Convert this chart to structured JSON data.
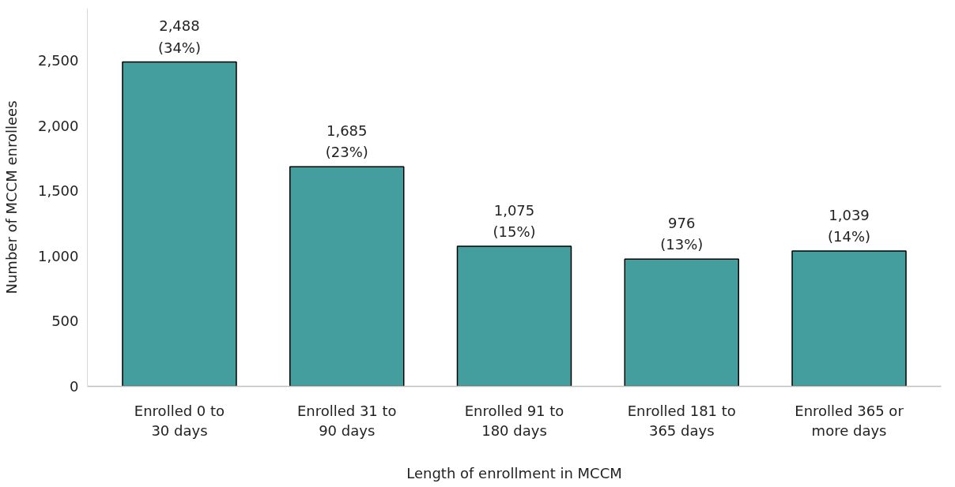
{
  "chart_data": {
    "type": "bar",
    "xlabel": "Length of enrollment in MCCM",
    "ylabel": "Number of MCCM enrollees",
    "categories": [
      "Enrolled 0 to 30 days",
      "Enrolled 31 to 90 days",
      "Enrolled 91 to 180 days",
      "Enrolled 181 to 365 days",
      "Enrolled 365 or more days"
    ],
    "values": [
      2488,
      1685,
      1075,
      976,
      1039
    ],
    "value_labels": [
      "2,488\n(34%)",
      "1,685\n(23%)",
      "1,075\n(15%)",
      "976\n(13%)",
      "1,039\n(14%)"
    ],
    "color": "#459e9e",
    "ylim": [
      0,
      2900
    ],
    "yticks": [
      {
        "value": 0,
        "label": "0"
      },
      {
        "value": 500,
        "label": "500"
      },
      {
        "value": 1000,
        "label": "1,000"
      },
      {
        "value": 1500,
        "label": "1,500"
      },
      {
        "value": 2000,
        "label": "2,000"
      },
      {
        "value": 2500,
        "label": "2,500"
      }
    ],
    "grid": false
  }
}
